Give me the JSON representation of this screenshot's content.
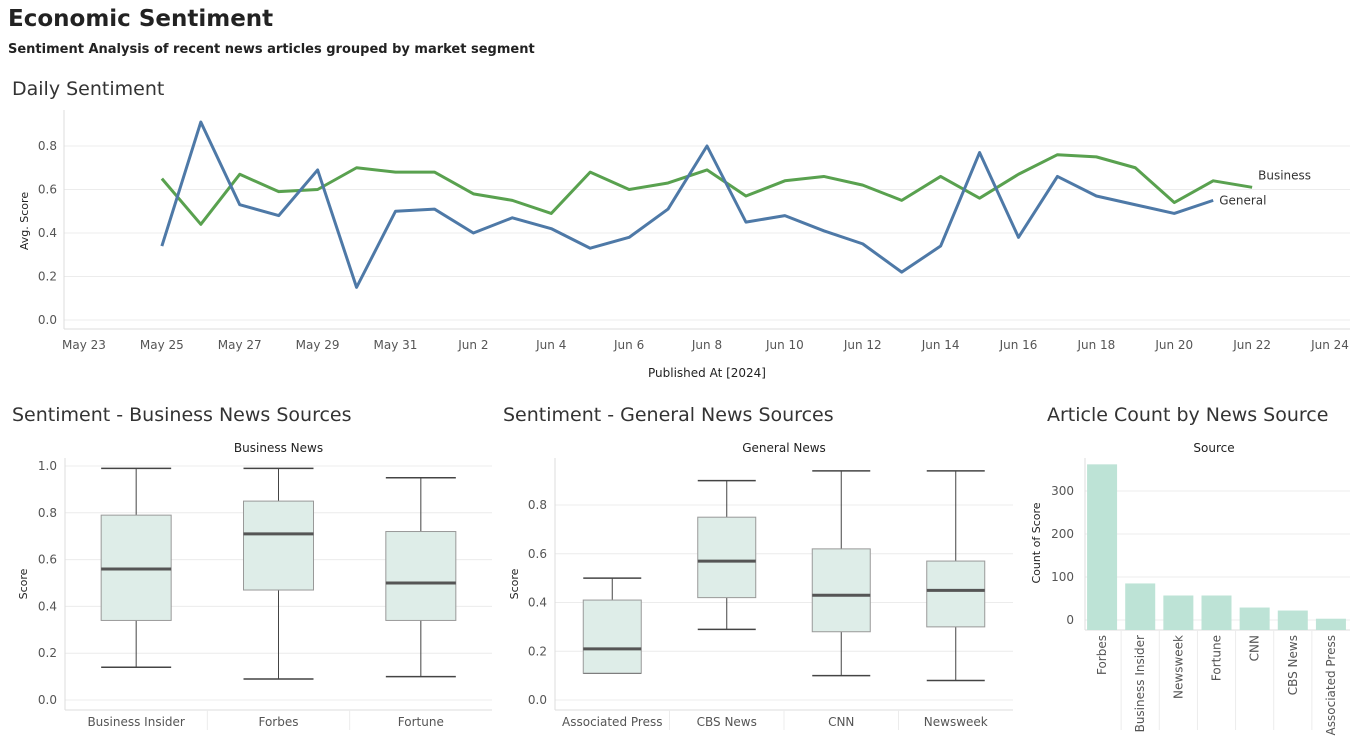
{
  "header": {
    "title": "Economic Sentiment",
    "subtitle": "Sentiment Analysis of recent news articles grouped by market segment"
  },
  "colors": {
    "business": "#59a14f",
    "general": "#4e79a7",
    "box_fill": "#deede8",
    "bar_fill": "#bde3d6",
    "grid": "#ececec",
    "axis": "#dddddd"
  },
  "chart_data": [
    {
      "type": "line",
      "sheet_title": "Daily Sentiment",
      "xlabel": "Published At [2024]",
      "ylabel": "Avg. Score",
      "x_ticks": [
        "May 23",
        "May 25",
        "May 27",
        "May 29",
        "May 31",
        "Jun 2",
        "Jun 4",
        "Jun 6",
        "Jun 8",
        "Jun 10",
        "Jun 12",
        "Jun 14",
        "Jun 16",
        "Jun 18",
        "Jun 20",
        "Jun 22",
        "Jun 24"
      ],
      "y_ticks": [
        "0.0",
        "0.2",
        "0.4",
        "0.6",
        "0.8"
      ],
      "ylim": [
        0,
        0.95
      ],
      "grid": true,
      "series": [
        {
          "name": "Business",
          "x": [
            "2024-05-25",
            "2024-05-26",
            "2024-05-27",
            "2024-05-28",
            "2024-05-29",
            "2024-05-30",
            "2024-05-31",
            "2024-06-01",
            "2024-06-02",
            "2024-06-03",
            "2024-06-04",
            "2024-06-05",
            "2024-06-06",
            "2024-06-07",
            "2024-06-08",
            "2024-06-09",
            "2024-06-10",
            "2024-06-11",
            "2024-06-12",
            "2024-06-13",
            "2024-06-14",
            "2024-06-15",
            "2024-06-16",
            "2024-06-17",
            "2024-06-18",
            "2024-06-19",
            "2024-06-20",
            "2024-06-21",
            "2024-06-22"
          ],
          "y": [
            0.65,
            0.44,
            0.67,
            0.59,
            0.6,
            0.7,
            0.68,
            0.68,
            0.58,
            0.55,
            0.49,
            0.68,
            0.6,
            0.63,
            0.69,
            0.57,
            0.64,
            0.66,
            0.62,
            0.55,
            0.66,
            0.56,
            0.67,
            0.76,
            0.75,
            0.7,
            0.54,
            0.64,
            0.61
          ]
        },
        {
          "name": "General",
          "x": [
            "2024-05-25",
            "2024-05-26",
            "2024-05-27",
            "2024-05-28",
            "2024-05-29",
            "2024-05-30",
            "2024-05-31",
            "2024-06-01",
            "2024-06-02",
            "2024-06-03",
            "2024-06-04",
            "2024-06-05",
            "2024-06-06",
            "2024-06-07",
            "2024-06-08",
            "2024-06-09",
            "2024-06-10",
            "2024-06-11",
            "2024-06-12",
            "2024-06-13",
            "2024-06-14",
            "2024-06-15",
            "2024-06-16",
            "2024-06-17",
            "2024-06-18",
            "2024-06-19",
            "2024-06-20",
            "2024-06-21"
          ],
          "y": [
            0.34,
            0.91,
            0.53,
            0.48,
            0.69,
            0.15,
            0.5,
            0.51,
            0.4,
            0.47,
            0.42,
            0.33,
            0.38,
            0.51,
            0.8,
            0.45,
            0.48,
            0.41,
            0.35,
            0.22,
            0.34,
            0.77,
            0.38,
            0.66,
            0.57,
            0.53,
            0.49,
            0.55
          ]
        }
      ]
    },
    {
      "type": "box",
      "sheet_title": "Sentiment - Business News Sources",
      "header": "Business News",
      "ylabel": "Score",
      "y_ticks": [
        "0.0",
        "0.2",
        "0.4",
        "0.6",
        "0.8",
        "1.0"
      ],
      "ylim": [
        0,
        1.0
      ],
      "categories": [
        "Business Insider",
        "Forbes",
        "Fortune"
      ],
      "boxes": [
        {
          "min": 0.14,
          "q1": 0.34,
          "median": 0.56,
          "q3": 0.79,
          "max": 0.99
        },
        {
          "min": 0.09,
          "q1": 0.47,
          "median": 0.71,
          "q3": 0.85,
          "max": 0.99
        },
        {
          "min": 0.1,
          "q1": 0.34,
          "median": 0.5,
          "q3": 0.72,
          "max": 0.95
        }
      ]
    },
    {
      "type": "box",
      "sheet_title": "Sentiment - General News Sources",
      "header": "General News",
      "ylabel": "Score",
      "y_ticks": [
        "0.0",
        "0.2",
        "0.4",
        "0.6",
        "0.8"
      ],
      "ylim": [
        0,
        0.95
      ],
      "categories": [
        "Associated Press",
        "CBS News",
        "CNN",
        "Newsweek"
      ],
      "boxes": [
        {
          "min": 0.11,
          "q1": 0.11,
          "median": 0.21,
          "q3": 0.41,
          "max": 0.5
        },
        {
          "min": 0.29,
          "q1": 0.42,
          "median": 0.57,
          "q3": 0.75,
          "max": 0.9
        },
        {
          "min": 0.1,
          "q1": 0.28,
          "median": 0.43,
          "q3": 0.62,
          "max": 0.94
        },
        {
          "min": 0.08,
          "q1": 0.3,
          "median": 0.45,
          "q3": 0.57,
          "max": 0.94
        }
      ]
    },
    {
      "type": "bar",
      "sheet_title": "Article Count by News Source",
      "header": "Source",
      "ylabel": "Count of Score",
      "y_ticks": [
        "0",
        "100",
        "200",
        "300"
      ],
      "ylim": [
        -25,
        375
      ],
      "categories": [
        "Forbes",
        "Business Insider",
        "Newsweek",
        "Fortune",
        "CNN",
        "CBS News",
        "Associated Press"
      ],
      "values": [
        362,
        85,
        57,
        57,
        29,
        22,
        3
      ]
    }
  ]
}
